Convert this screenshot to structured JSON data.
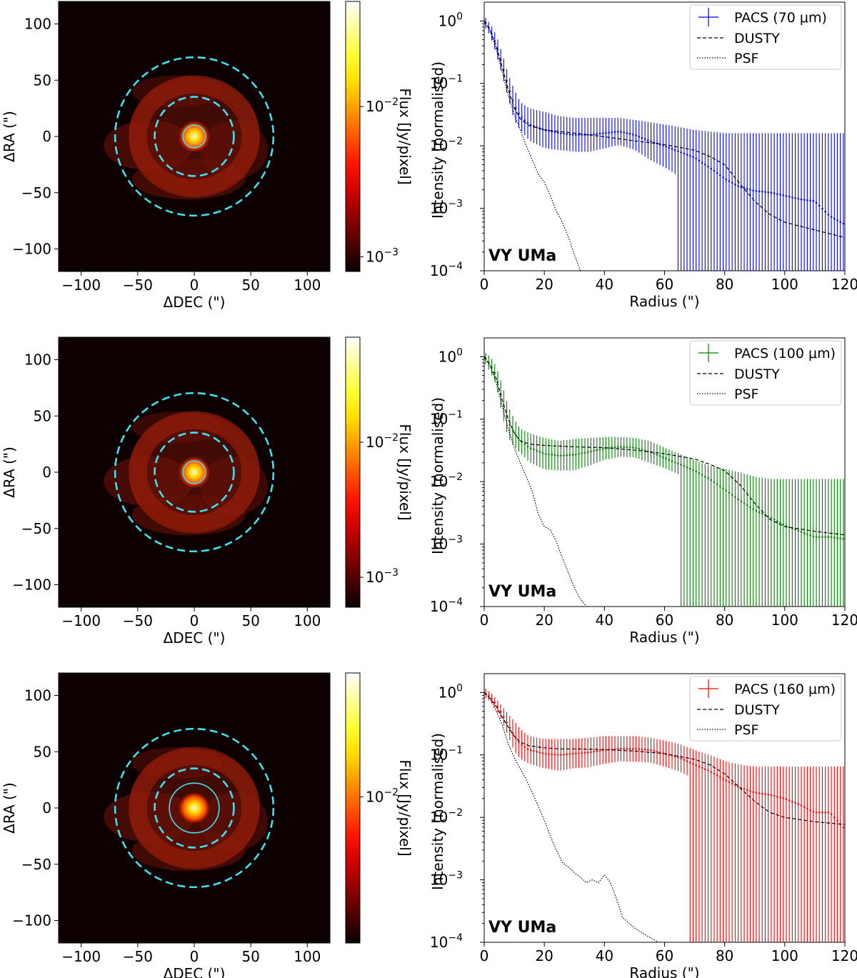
{
  "figure": {
    "rows": [
      {
        "band": "70",
        "image": {
          "xlabel": "ΔDEC (\")",
          "ylabel": "ΔRA (\")",
          "xticks": [
            "−100",
            "−50",
            "0",
            "50",
            "100"
          ],
          "yticks": [
            "100",
            "50",
            "0",
            "−50",
            "−100"
          ],
          "colorbar_label": "Flux [Jy/pixel]",
          "colorbar_ticks": [
            {
              "exp": "−2",
              "value": 0.01
            },
            {
              "exp": "−3",
              "value": 0.001
            }
          ],
          "colorbar_range": [
            0.0008,
            0.05
          ],
          "colormap": "hot",
          "source_circle_radius": 10,
          "annulus_radii": [
            35,
            70
          ]
        },
        "profile": {
          "legend": {
            "data": "PACS (70 μm)",
            "model": "DUSTY",
            "psf": "PSF"
          },
          "data_color": "#0000ff",
          "target": "VY UMa",
          "xlabel": "Radius (\")",
          "ylabel": "Intensity (normalised)",
          "xticks": [
            "0",
            "20",
            "40",
            "60",
            "80",
            "100",
            "120"
          ],
          "yticks": [
            {
              "exp": "0"
            },
            {
              "exp": "−1"
            },
            {
              "exp": "−2"
            },
            {
              "exp": "−3"
            },
            {
              "exp": "−4"
            }
          ]
        }
      },
      {
        "band": "100",
        "image": {
          "xlabel": "ΔDEC (\")",
          "ylabel": "ΔRA (\")",
          "xticks": [
            "−100",
            "−50",
            "0",
            "50",
            "100"
          ],
          "yticks": [
            "100",
            "50",
            "0",
            "−50",
            "−100"
          ],
          "colorbar_label": "Flux [Jy/pixel]",
          "colorbar_ticks": [
            {
              "exp": "−2",
              "value": 0.01
            },
            {
              "exp": "−3",
              "value": 0.001
            }
          ],
          "colorbar_range": [
            0.0006,
            0.06
          ],
          "colormap": "hot",
          "source_circle_radius": 10,
          "annulus_radii": [
            35,
            70
          ]
        },
        "profile": {
          "legend": {
            "data": "PACS (100 μm)",
            "model": "DUSTY",
            "psf": "PSF"
          },
          "data_color": "#008000",
          "target": "VY UMa",
          "xlabel": "Radius (\")",
          "ylabel": "Intensity (normalised)",
          "xticks": [
            "0",
            "20",
            "40",
            "60",
            "80",
            "100",
            "120"
          ],
          "yticks": [
            {
              "exp": "0"
            },
            {
              "exp": "−1"
            },
            {
              "exp": "−2"
            },
            {
              "exp": "−3"
            },
            {
              "exp": "−4"
            }
          ]
        }
      },
      {
        "band": "160",
        "image": {
          "xlabel": "ΔDEC (\")",
          "ylabel": "ΔRA (\")",
          "xticks": [
            "−100",
            "−50",
            "0",
            "50",
            "100"
          ],
          "yticks": [
            "100",
            "50",
            "0",
            "−50",
            "−100"
          ],
          "colorbar_label": "Flux [Jy/pixel]",
          "colorbar_ticks": [
            {
              "exp": "−2",
              "value": 0.01
            }
          ],
          "colorbar_range": [
            0.0015,
            0.05
          ],
          "colormap": "hot",
          "source_circle_radius": 22,
          "annulus_radii": [
            35,
            70
          ]
        },
        "profile": {
          "legend": {
            "data": "PACS (160 μm)",
            "model": "DUSTY",
            "psf": "PSF"
          },
          "data_color": "#ff0000",
          "target": "VY UMa",
          "xlabel": "Radius (\")",
          "ylabel": "Intensity (normalised)",
          "xticks": [
            "0",
            "20",
            "40",
            "60",
            "80",
            "100",
            "120"
          ],
          "yticks": [
            {
              "exp": "0"
            },
            {
              "exp": "−1"
            },
            {
              "exp": "−2"
            },
            {
              "exp": "−3"
            },
            {
              "exp": "−4"
            }
          ]
        }
      }
    ]
  },
  "chart_data": [
    {
      "type": "heatmap",
      "title": "",
      "xlabel": "ΔDEC (\")",
      "ylabel": "ΔRA (\")",
      "xlim": [
        -120,
        120
      ],
      "ylim": [
        -120,
        120
      ],
      "colorbar": {
        "label": "Flux [Jy/pixel]",
        "scale": "log",
        "range": [
          0.0008,
          0.05
        ]
      },
      "overlays": {
        "source_circle_radius": 10,
        "annulus_radii": [
          35,
          70
        ]
      }
    },
    {
      "type": "line",
      "x_scale": "linear",
      "y_scale": "log",
      "xlabel": "Radius (\")",
      "ylabel": "Intensity (normalised)",
      "xlim": [
        0,
        120
      ],
      "ylim": [
        0.0001,
        2
      ],
      "annotation": "VY UMa",
      "legend": "top-right",
      "series": [
        {
          "name": "PACS (70 μm)",
          "x": [
            0,
            2,
            4,
            6,
            8,
            10,
            12,
            15,
            20,
            25,
            30,
            35,
            40,
            45,
            50,
            55,
            60,
            65,
            70,
            75,
            80,
            85,
            90,
            95,
            100,
            105,
            110,
            115,
            120
          ],
          "values": [
            1.0,
            0.72,
            0.42,
            0.2,
            0.09,
            0.045,
            0.03,
            0.022,
            0.018,
            0.016,
            0.015,
            0.015,
            0.016,
            0.017,
            0.015,
            0.012,
            0.01,
            0.008,
            0.0065,
            0.0045,
            0.003,
            0.0022,
            0.0019,
            0.0018,
            0.0016,
            0.0014,
            0.0013,
            0.00075,
            0.00055
          ],
          "yerr_upper": [
            1.2,
            0.9,
            0.6,
            0.3,
            0.14,
            0.08,
            0.05,
            0.04,
            0.035,
            0.03,
            0.028,
            0.028,
            0.028,
            0.028,
            0.026,
            0.024,
            0.022,
            0.02,
            0.018,
            0.017,
            0.016,
            0.016,
            0.016,
            0.016,
            0.016,
            0.016,
            0.016,
            0.016,
            0.016
          ],
          "error_bars_reach_floor_from_x": 64
        },
        {
          "name": "DUSTY",
          "x": [
            0,
            2,
            4,
            6,
            8,
            10,
            12,
            15,
            20,
            25,
            30,
            40,
            50,
            60,
            70,
            75,
            80,
            85,
            90,
            95,
            100,
            110,
            120
          ],
          "values": [
            1.0,
            0.7,
            0.4,
            0.18,
            0.08,
            0.04,
            0.027,
            0.021,
            0.018,
            0.017,
            0.016,
            0.014,
            0.012,
            0.0105,
            0.0085,
            0.0068,
            0.005,
            0.0025,
            0.0013,
            0.0008,
            0.0006,
            0.00045,
            0.00034
          ]
        },
        {
          "name": "PSF",
          "x": [
            0,
            2,
            4,
            6,
            8,
            10,
            12,
            14,
            16,
            18,
            20,
            22,
            24,
            26,
            28,
            30,
            32
          ],
          "values": [
            1.0,
            0.7,
            0.35,
            0.15,
            0.065,
            0.032,
            0.018,
            0.01,
            0.006,
            0.0035,
            0.0026,
            0.0016,
            0.0009,
            0.0006,
            0.00035,
            0.00018,
            0.0001
          ]
        }
      ]
    },
    {
      "type": "heatmap",
      "title": "",
      "xlabel": "ΔDEC (\")",
      "ylabel": "ΔRA (\")",
      "xlim": [
        -120,
        120
      ],
      "ylim": [
        -120,
        120
      ],
      "colorbar": {
        "label": "Flux [Jy/pixel]",
        "scale": "log",
        "range": [
          0.0006,
          0.06
        ]
      },
      "overlays": {
        "source_circle_radius": 10,
        "annulus_radii": [
          35,
          70
        ]
      }
    },
    {
      "type": "line",
      "x_scale": "linear",
      "y_scale": "log",
      "xlabel": "Radius (\")",
      "ylabel": "Intensity (normalised)",
      "xlim": [
        0,
        120
      ],
      "ylim": [
        0.0001,
        2
      ],
      "annotation": "VY UMa",
      "legend": "top-right",
      "series": [
        {
          "name": "PACS (100 μm)",
          "x": [
            0,
            2,
            4,
            6,
            8,
            10,
            12,
            15,
            20,
            25,
            30,
            35,
            40,
            45,
            50,
            55,
            60,
            65,
            70,
            75,
            80,
            85,
            90,
            95,
            100,
            105,
            110,
            115,
            120
          ],
          "values": [
            1.0,
            0.75,
            0.5,
            0.2,
            0.09,
            0.06,
            0.045,
            0.035,
            0.028,
            0.026,
            0.027,
            0.03,
            0.034,
            0.036,
            0.035,
            0.03,
            0.024,
            0.019,
            0.015,
            0.011,
            0.0075,
            0.005,
            0.0035,
            0.0027,
            0.002,
            0.0016,
            0.0013,
            0.0013,
            0.0012
          ],
          "yerr_upper": [
            1.2,
            1.0,
            0.7,
            0.35,
            0.16,
            0.1,
            0.07,
            0.06,
            0.05,
            0.045,
            0.048,
            0.05,
            0.052,
            0.052,
            0.05,
            0.045,
            0.035,
            0.028,
            0.022,
            0.018,
            0.016,
            0.014,
            0.012,
            0.011,
            0.011,
            0.011,
            0.011,
            0.011,
            0.011
          ],
          "error_bars_reach_floor_from_x": 65
        },
        {
          "name": "DUSTY",
          "x": [
            0,
            2,
            4,
            6,
            8,
            10,
            12,
            15,
            20,
            25,
            30,
            40,
            50,
            60,
            70,
            75,
            80,
            85,
            90,
            95,
            100,
            110,
            120
          ],
          "values": [
            1.0,
            0.72,
            0.45,
            0.2,
            0.1,
            0.06,
            0.045,
            0.04,
            0.038,
            0.037,
            0.036,
            0.035,
            0.032,
            0.028,
            0.023,
            0.019,
            0.015,
            0.009,
            0.0045,
            0.0025,
            0.0019,
            0.0016,
            0.0014
          ]
        },
        {
          "name": "PSF",
          "x": [
            0,
            2,
            4,
            6,
            8,
            10,
            12,
            14,
            16,
            18,
            20,
            22,
            24,
            26,
            28,
            30,
            32,
            34
          ],
          "values": [
            1.0,
            0.72,
            0.38,
            0.16,
            0.07,
            0.035,
            0.02,
            0.012,
            0.007,
            0.003,
            0.0019,
            0.0017,
            0.0011,
            0.0006,
            0.00035,
            0.0002,
            0.00013,
            0.0001
          ]
        }
      ]
    },
    {
      "type": "heatmap",
      "title": "",
      "xlabel": "ΔDEC (\")",
      "ylabel": "ΔRA (\")",
      "xlim": [
        -120,
        120
      ],
      "ylim": [
        -120,
        120
      ],
      "colorbar": {
        "label": "Flux [Jy/pixel]",
        "scale": "log",
        "range": [
          0.0015,
          0.05
        ]
      },
      "overlays": {
        "source_circle_radius": 22,
        "annulus_radii": [
          35,
          70
        ]
      }
    },
    {
      "type": "line",
      "x_scale": "linear",
      "y_scale": "log",
      "xlabel": "Radius (\")",
      "ylabel": "Intensity (normalised)",
      "xlim": [
        0,
        120
      ],
      "ylim": [
        0.0001,
        2
      ],
      "annotation": "VY UMa",
      "legend": "top-right",
      "series": [
        {
          "name": "PACS (160 μm)",
          "x": [
            0,
            2,
            4,
            6,
            8,
            10,
            12,
            15,
            20,
            25,
            30,
            35,
            40,
            45,
            50,
            55,
            60,
            65,
            70,
            75,
            80,
            85,
            90,
            95,
            100,
            105,
            110,
            115,
            120
          ],
          "values": [
            1.0,
            0.85,
            0.65,
            0.45,
            0.3,
            0.2,
            0.15,
            0.12,
            0.105,
            0.1,
            0.105,
            0.11,
            0.12,
            0.125,
            0.125,
            0.12,
            0.105,
            0.09,
            0.07,
            0.055,
            0.04,
            0.03,
            0.025,
            0.023,
            0.02,
            0.016,
            0.012,
            0.012,
            0.0065
          ],
          "yerr_upper": [
            1.2,
            1.0,
            0.8,
            0.6,
            0.45,
            0.35,
            0.26,
            0.2,
            0.18,
            0.18,
            0.18,
            0.19,
            0.2,
            0.2,
            0.2,
            0.19,
            0.17,
            0.15,
            0.12,
            0.1,
            0.08,
            0.07,
            0.065,
            0.065,
            0.065,
            0.065,
            0.065,
            0.065,
            0.065
          ],
          "error_bars_reach_floor_from_x": 68
        },
        {
          "name": "DUSTY",
          "x": [
            0,
            2,
            4,
            6,
            8,
            10,
            12,
            15,
            20,
            25,
            30,
            40,
            50,
            60,
            70,
            75,
            80,
            85,
            90,
            95,
            100,
            110,
            120
          ],
          "values": [
            1.0,
            0.8,
            0.6,
            0.4,
            0.28,
            0.2,
            0.16,
            0.14,
            0.13,
            0.125,
            0.125,
            0.122,
            0.115,
            0.105,
            0.085,
            0.07,
            0.05,
            0.03,
            0.018,
            0.012,
            0.01,
            0.0085,
            0.0077
          ]
        },
        {
          "name": "PSF",
          "x": [
            0,
            2,
            4,
            6,
            8,
            10,
            12,
            14,
            16,
            18,
            20,
            22,
            24,
            26,
            28,
            30,
            32,
            34,
            36,
            38,
            40,
            42,
            44,
            46,
            50,
            55,
            58
          ],
          "values": [
            1.0,
            0.8,
            0.5,
            0.3,
            0.15,
            0.09,
            0.06,
            0.04,
            0.025,
            0.015,
            0.009,
            0.005,
            0.003,
            0.0019,
            0.0016,
            0.0013,
            0.0011,
            0.0009,
            0.001,
            0.0009,
            0.0012,
            0.0009,
            0.0005,
            0.00025,
            0.00017,
            0.00012,
            0.0001
          ]
        }
      ]
    }
  ]
}
